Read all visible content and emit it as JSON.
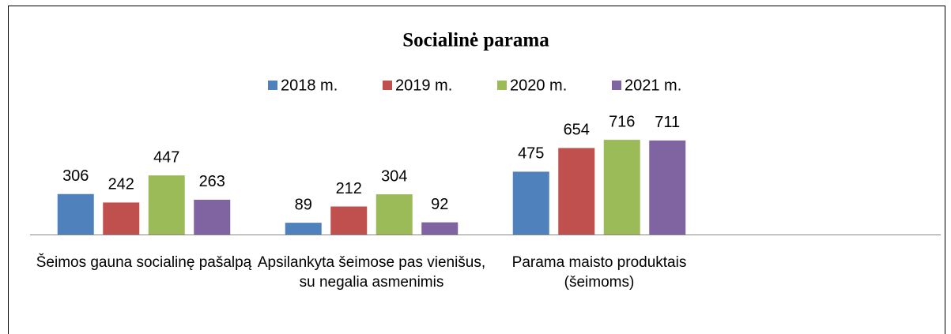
{
  "chart_data": {
    "type": "bar",
    "title": "Socialinė parama",
    "categories": [
      "Šeimos gauna socialinę pašalpą",
      "Apsilankyta šeimose pas vienišus, su negalia asmenimis",
      "Parama maisto produktais (šeimoms)",
      null
    ],
    "series": [
      {
        "name": "2018 m.",
        "color": "#4f81bd",
        "values": [
          306,
          89,
          475,
          null
        ]
      },
      {
        "name": "2019 m.",
        "color": "#c0504d",
        "values": [
          242,
          212,
          654,
          null
        ]
      },
      {
        "name": "2020 m.",
        "color": "#9bbb59",
        "values": [
          447,
          304,
          716,
          null
        ]
      },
      {
        "name": "2021 m.",
        "color": "#8064a2",
        "values": [
          263,
          92,
          711,
          null
        ]
      }
    ],
    "ylim": [
      0,
      800
    ],
    "legend": "top"
  }
}
